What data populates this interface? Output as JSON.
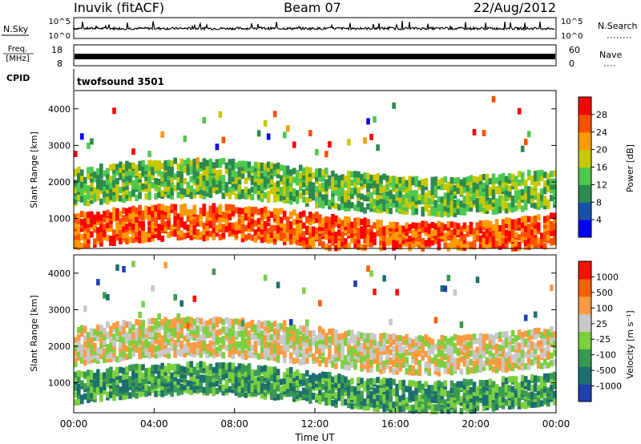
{
  "header": {
    "station": "Inuvik (fitACF)",
    "beam": "Beam 07",
    "date": "22/Aug/2012"
  },
  "top_panels": {
    "nsky_label": "N.Sky",
    "nsky_ticks": [
      "10^5",
      "10^0"
    ],
    "nsearch_label": "N.Search",
    "freq_label_line1": "Freq.",
    "freq_label_line2": "[MHz]",
    "freq_ticks": [
      "18",
      "8"
    ],
    "nave_ticks": [
      "60",
      "0"
    ],
    "nave_label": "Nave",
    "cpid_label": "CPID",
    "cpid_value": "twofsound 3501"
  },
  "chart_data": [
    {
      "type": "heatmap",
      "panel": "power",
      "ylabel": "Slant Range [km]",
      "ylim": [
        180,
        4500
      ],
      "yticks": [
        "4000",
        "3000",
        "2000",
        "1000"
      ],
      "x_range_hours": [
        0,
        24
      ],
      "colorbar_label": "Power [dB]",
      "colorbar_ticks": [
        "28",
        "24",
        "20",
        "16",
        "12",
        "8",
        "4"
      ],
      "colors": [
        "#0000ff",
        "#1a50aa",
        "#2d8a4e",
        "#4fc84f",
        "#c8c800",
        "#ff9a00",
        "#ff5000",
        "#ff0000"
      ],
      "bands": [
        {
          "range_center_km": 1900,
          "width_km": 500,
          "level": 3
        },
        {
          "range_center_km": 700,
          "width_km": 450,
          "level": 6
        }
      ]
    },
    {
      "type": "heatmap",
      "panel": "velocity",
      "ylabel": "Slant Range [km]",
      "xlabel": "Time UT",
      "ylim": [
        180,
        4500
      ],
      "yticks": [
        "4000",
        "3000",
        "2000",
        "1000"
      ],
      "xticks": [
        "00:00",
        "04:00",
        "08:00",
        "12:00",
        "16:00",
        "20:00",
        "00:00"
      ],
      "x_range_hours": [
        0,
        24
      ],
      "colorbar_label": "Velocity [m s⁻¹]",
      "colorbar_ticks": [
        "1000",
        "500",
        "100",
        "25",
        "-25",
        "-100",
        "-500",
        "-1000"
      ],
      "colors": [
        "#2040b0",
        "#1d6f6f",
        "#3a9a50",
        "#7cd040",
        "#c8c8c8",
        "#ff9a40",
        "#ff6000",
        "#ff1000"
      ],
      "bands": [
        {
          "range_center_km": 2050,
          "width_km": 500,
          "level": 4
        },
        {
          "range_center_km": 900,
          "width_km": 400,
          "level": 2
        }
      ]
    }
  ]
}
